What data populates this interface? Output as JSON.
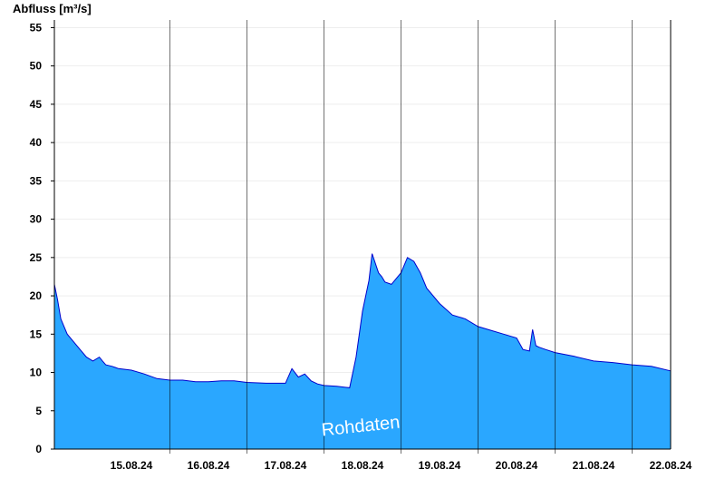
{
  "chart_data": {
    "type": "area",
    "ylabel": "Abfluss [m³/s]",
    "watermark": "Rohdaten",
    "xlim": [
      "14.08.24 12:00",
      "22.08.24 12:00"
    ],
    "ylim": [
      0,
      56
    ],
    "yticks": [
      0,
      5,
      10,
      15,
      20,
      25,
      30,
      35,
      40,
      45,
      50,
      55
    ],
    "xtick_labels": [
      "15.08.24",
      "16.08.24",
      "17.08.24",
      "18.08.24",
      "19.08.24",
      "20.08.24",
      "21.08.24",
      "22.08.24"
    ],
    "grid": true,
    "colors": {
      "fill": "#2aa7ff",
      "line": "#0000cc",
      "gridline": "#eeeeee",
      "axis": "#000000"
    },
    "series": [
      {
        "x": [
          "14.08.24 12:00",
          "14.08.24 13:00",
          "14.08.24 14:00",
          "14.08.24 16:00",
          "14.08.24 18:00",
          "14.08.24 20:00",
          "14.08.24 22:00",
          "15.08.24 00:00",
          "15.08.24 02:00",
          "15.08.24 03:00",
          "15.08.24 04:00",
          "15.08.24 06:00",
          "15.08.24 08:00",
          "15.08.24 12:00",
          "15.08.24 16:00",
          "15.08.24 20:00",
          "16.08.24 00:00",
          "16.08.24 04:00",
          "16.08.24 08:00",
          "16.08.24 12:00",
          "16.08.24 16:00",
          "16.08.24 20:00",
          "17.08.24 00:00",
          "17.08.24 06:00",
          "17.08.24 12:00",
          "17.08.24 14:00",
          "17.08.24 16:00",
          "17.08.24 18:00",
          "17.08.24 20:00",
          "17.08.24 22:00",
          "18.08.24 00:00",
          "18.08.24 04:00",
          "18.08.24 08:00",
          "18.08.24 10:00",
          "18.08.24 12:00",
          "18.08.24 14:00",
          "18.08.24 15:00",
          "18.08.24 17:00",
          "18.08.24 18:00",
          "18.08.24 19:00",
          "18.08.24 21:00",
          "19.08.24 00:00",
          "19.08.24 02:00",
          "19.08.24 04:00",
          "19.08.24 06:00",
          "19.08.24 08:00",
          "19.08.24 12:00",
          "19.08.24 16:00",
          "19.08.24 20:00",
          "20.08.24 00:00",
          "20.08.24 04:00",
          "20.08.24 08:00",
          "20.08.24 12:00",
          "20.08.24 14:00",
          "20.08.24 16:00",
          "20.08.24 17:00",
          "20.08.24 18:00",
          "20.08.24 19:00",
          "20.08.24 21:00",
          "21.08.24 00:00",
          "21.08.24 06:00",
          "21.08.24 12:00",
          "21.08.24 18:00",
          "22.08.24 00:00",
          "22.08.24 06:00",
          "22.08.24 12:00"
        ],
        "values": [
          21.5,
          19.5,
          17.0,
          15.0,
          14.0,
          13.0,
          12.0,
          11.5,
          12.0,
          11.5,
          11.0,
          10.8,
          10.5,
          10.3,
          9.8,
          9.2,
          9.0,
          9.0,
          8.8,
          8.8,
          8.9,
          8.9,
          8.7,
          8.6,
          8.6,
          10.5,
          9.4,
          9.8,
          8.9,
          8.5,
          8.3,
          8.2,
          8.0,
          12.0,
          18.0,
          22.0,
          25.5,
          23.0,
          22.5,
          21.8,
          21.5,
          23.0,
          25.0,
          24.5,
          23.0,
          21.0,
          19.0,
          17.5,
          17.0,
          16.0,
          15.5,
          15.0,
          14.5,
          13.0,
          12.8,
          15.6,
          13.5,
          13.3,
          13.0,
          12.6,
          12.1,
          11.5,
          11.3,
          11.0,
          10.8,
          10.2
        ]
      }
    ]
  }
}
